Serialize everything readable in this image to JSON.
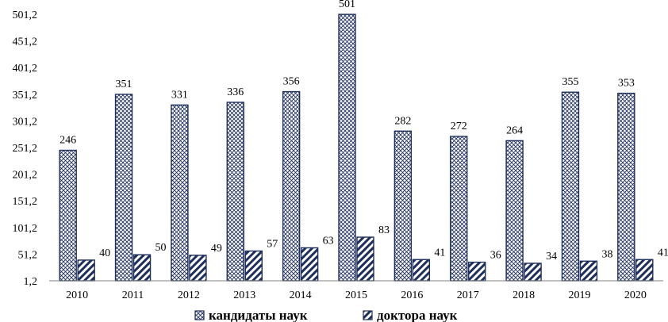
{
  "chart_data": {
    "type": "bar",
    "categories": [
      "2010",
      "2011",
      "2012",
      "2013",
      "2014",
      "2015",
      "2016",
      "2017",
      "2018",
      "2019",
      "2020"
    ],
    "series": [
      {
        "name": "кандидаты наук",
        "values": [
          246,
          351,
          331,
          336,
          356,
          501,
          282,
          272,
          264,
          355,
          353
        ],
        "pattern": "crosshatch"
      },
      {
        "name": "доктора наук",
        "values": [
          40,
          50,
          49,
          57,
          63,
          83,
          41,
          36,
          34,
          38,
          41
        ],
        "pattern": "diagonal"
      }
    ],
    "y_ticks": [
      "1,2",
      "51,2",
      "101,2",
      "151,2",
      "201,2",
      "251,2",
      "301,2",
      "351,2",
      "401,2",
      "451,2",
      "501,2"
    ],
    "ylim": [
      1.2,
      501.2
    ],
    "grid": false,
    "legend_position": "bottom",
    "title": "",
    "xlabel": "",
    "ylabel": "",
    "colors": {
      "bar_stroke": "#1f2f5c",
      "pattern": "#1f2f5c",
      "axis": "#7f7f7f"
    }
  }
}
